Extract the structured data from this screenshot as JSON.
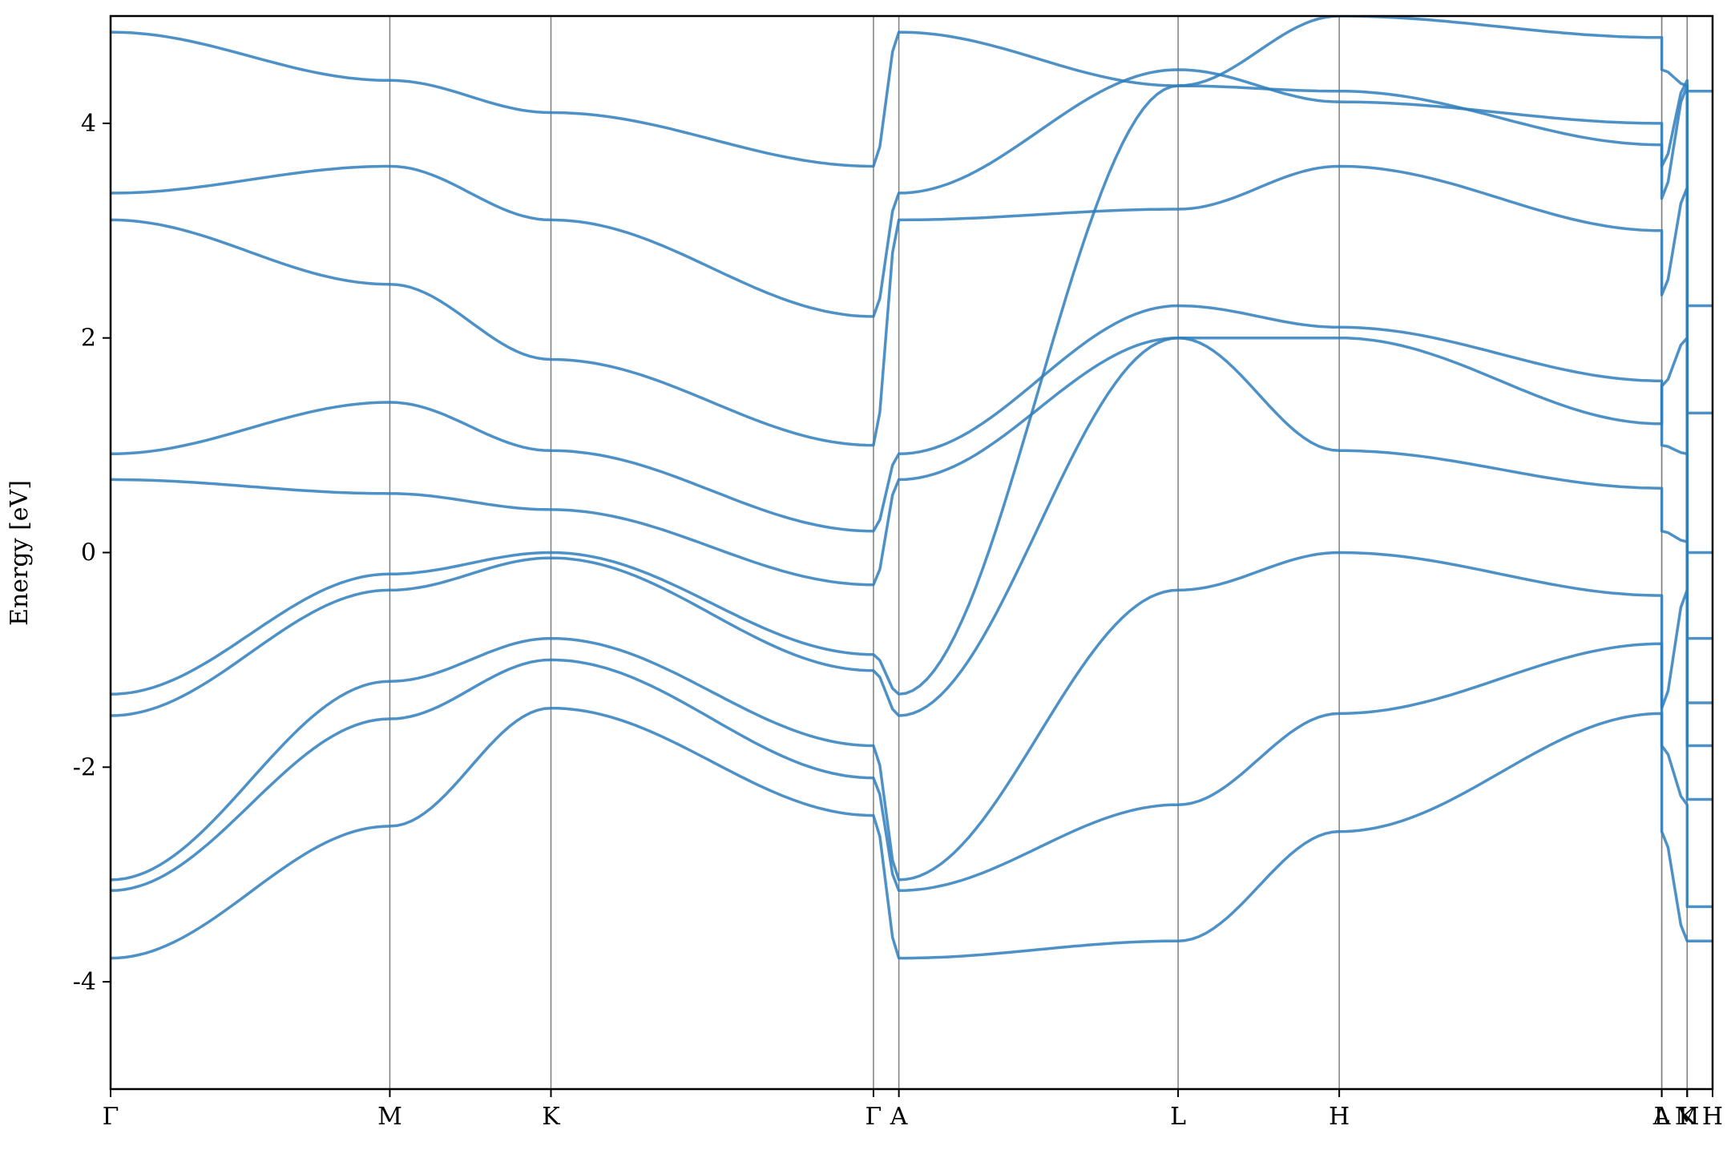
{
  "chart_data": {
    "type": "line",
    "title": "",
    "xlabel": "",
    "ylabel": "Energy [eV]",
    "ylim": [
      -5,
      5
    ],
    "grid": "vertical lines at high-symmetry points",
    "legend": "none",
    "line_color": "#2e7ebc",
    "k_points": [
      {
        "label": "Γ",
        "x": 0.0
      },
      {
        "label": "M",
        "x": 1.0
      },
      {
        "label": "K",
        "x": 1.577
      },
      {
        "label": "Γ",
        "x": 2.732
      },
      {
        "label": "A",
        "x": 2.823
      },
      {
        "label": "L",
        "x": 3.823
      },
      {
        "label": "H",
        "x": 4.4
      },
      {
        "label": "A",
        "x": 5.555
      },
      {
        "label": "L",
        "x": 5.555
      },
      {
        "label": "M",
        "x": 5.646
      },
      {
        "label": "K",
        "x": 5.646
      },
      {
        "label": "H",
        "x": 5.737
      }
    ],
    "yticks": [
      {
        "value": 4,
        "label": "4"
      },
      {
        "value": 2,
        "label": "2"
      },
      {
        "value": 0,
        "label": "0"
      },
      {
        "value": -2,
        "label": "-2"
      },
      {
        "value": -4,
        "label": "-4"
      }
    ],
    "bands": [
      {
        "name": "",
        "values": [
          -3.78,
          -2.55,
          -1.45,
          -2.45,
          -3.78,
          -3.62,
          -2.6,
          -1.5,
          -2.6,
          -3.62,
          -3.62,
          -3.62
        ]
      },
      {
        "name": "",
        "values": [
          -3.15,
          -1.55,
          -1.0,
          -2.1,
          -3.15,
          -2.35,
          -1.5,
          -0.85,
          -1.8,
          -2.35,
          -3.3,
          -3.3
        ]
      },
      {
        "name": "",
        "values": [
          -3.05,
          -1.2,
          -0.8,
          -1.8,
          -3.05,
          -0.35,
          0.0,
          -0.4,
          -1.45,
          -0.35,
          -2.3,
          -2.3
        ]
      },
      {
        "name": "",
        "values": [
          -1.52,
          -0.35,
          -0.05,
          -1.1,
          -1.52,
          2.0,
          2.0,
          1.2,
          1.55,
          2.0,
          -1.8,
          -1.8
        ]
      },
      {
        "name": "",
        "values": [
          -1.32,
          -0.2,
          0.0,
          -0.95,
          -1.32,
          4.35,
          4.3,
          3.8,
          3.3,
          4.35,
          -1.4,
          -1.4
        ]
      },
      {
        "name": "",
        "values": [
          0.68,
          0.55,
          0.4,
          -0.3,
          0.68,
          2.0,
          0.95,
          0.6,
          0.2,
          0.1,
          -0.8,
          -0.8
        ]
      },
      {
        "name": "",
        "values": [
          0.92,
          1.4,
          0.95,
          0.2,
          0.92,
          2.3,
          2.1,
          1.6,
          1.0,
          0.92,
          0.0,
          0.0
        ]
      },
      {
        "name": "",
        "values": [
          3.1,
          2.5,
          1.8,
          1.0,
          3.1,
          3.2,
          3.6,
          3.0,
          2.4,
          3.4,
          1.3,
          1.3
        ]
      },
      {
        "name": "",
        "values": [
          3.35,
          3.6,
          3.1,
          2.2,
          3.35,
          4.5,
          4.2,
          4.0,
          3.6,
          4.4,
          2.3,
          2.3
        ]
      },
      {
        "name": "",
        "values": [
          4.85,
          4.4,
          4.1,
          3.6,
          4.85,
          4.35,
          5.0,
          4.8,
          4.5,
          4.35,
          4.3,
          4.3
        ]
      }
    ]
  }
}
